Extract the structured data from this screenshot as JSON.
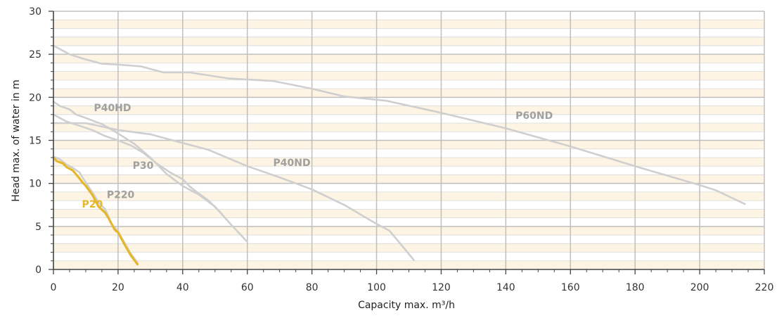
{
  "chart_data": {
    "type": "line",
    "xlabel": "Capacity max. m³/h",
    "ylabel": "Head max. of water in m",
    "xlim": [
      0,
      220
    ],
    "ylim": [
      0,
      30
    ],
    "x_ticks": [
      0,
      20,
      40,
      60,
      80,
      100,
      120,
      140,
      160,
      180,
      200,
      220
    ],
    "y_ticks": [
      0,
      5,
      10,
      15,
      20,
      25,
      30
    ],
    "grid": true,
    "legend": "none",
    "colors": {
      "band_light": "#fdf4e3",
      "band_white": "#ffffff",
      "major_grid": "#bfbfbf",
      "minor_grid": "#d9d9d9",
      "axis": "#444444",
      "series_gray": "#cfcfcf",
      "label_gray": "#a0a0a0",
      "series_yellow": "#e5b72a",
      "label_yellow": "#e5b72a"
    },
    "series": [
      {
        "name": "P60ND",
        "color": "#cfcfcf",
        "label_color": "#a0a0a0",
        "label_at": [
          143,
          17.5
        ],
        "x": [
          0,
          5,
          10,
          15,
          20,
          27,
          34,
          42,
          54,
          68,
          80,
          90,
          103,
          120,
          140,
          160,
          180,
          200,
          205,
          214
        ],
        "y": [
          26,
          25,
          24.4,
          23.9,
          23.8,
          23.6,
          22.9,
          22.9,
          22.2,
          21.9,
          21.0,
          20.1,
          19.6,
          18.2,
          16.4,
          14.3,
          12.0,
          9.8,
          9.2,
          7.6
        ]
      },
      {
        "name": "P40ND",
        "color": "#cfcfcf",
        "label_color": "#a0a0a0",
        "label_at": [
          68,
          12
        ],
        "x": [
          0,
          10,
          20,
          30,
          40,
          48,
          60,
          70,
          80,
          90,
          100,
          104,
          108,
          111.5
        ],
        "y": [
          17,
          17,
          16.2,
          15.7,
          14.7,
          13.9,
          12.0,
          10.7,
          9.3,
          7.5,
          5.3,
          4.5,
          2.7,
          1.1
        ]
      },
      {
        "name": "P40HD",
        "color": "#cfcfcf",
        "label_color": "#a0a0a0",
        "label_at": [
          12.5,
          18.4
        ],
        "x": [
          0,
          2,
          5,
          7,
          10,
          15,
          20,
          25,
          30,
          35,
          40,
          45,
          50,
          55,
          60
        ],
        "y": [
          19.5,
          19.0,
          18.6,
          18.0,
          17.6,
          16.9,
          15.8,
          14.6,
          13.0,
          11.1,
          9.7,
          8.7,
          7.3,
          5.2,
          3.2
        ]
      },
      {
        "name": "P30",
        "color": "#cfcfcf",
        "label_color": "#a0a0a0",
        "label_at": [
          24.5,
          11.7
        ],
        "x": [
          0,
          4,
          8,
          12,
          16,
          20,
          24,
          28,
          32,
          36,
          40,
          42,
          44,
          48,
          52
        ],
        "y": [
          18.0,
          17.2,
          16.7,
          16.2,
          15.5,
          15.0,
          14.4,
          13.5,
          12.3,
          11.3,
          10.5,
          9.7,
          9.1,
          8.0,
          6.5
        ]
      },
      {
        "name": "P220",
        "color": "#cfcfcf",
        "label_color": "#a0a0a0",
        "label_at": [
          16.5,
          8.3
        ],
        "x": [
          0,
          2,
          4,
          6,
          8,
          10,
          12,
          14,
          16,
          17,
          18,
          20,
          22,
          24,
          26
        ],
        "y": [
          13.1,
          12.8,
          12.2,
          11.8,
          11.3,
          10.1,
          9.0,
          7.8,
          7.0,
          6.2,
          5.3,
          4.4,
          3.1,
          1.8,
          0.8
        ]
      },
      {
        "name": "P20",
        "color": "#e5b72a",
        "label_color": "#e5b72a",
        "label_at": [
          8.8,
          7.2
        ],
        "x": [
          0,
          1,
          3,
          4,
          6,
          8,
          9,
          10,
          12,
          14,
          16,
          17,
          18,
          19,
          20,
          22,
          24,
          26
        ],
        "y": [
          13.0,
          12.6,
          12.3,
          11.9,
          11.5,
          10.6,
          10.1,
          9.7,
          8.7,
          7.3,
          6.6,
          6.0,
          5.3,
          4.6,
          4.3,
          2.9,
          1.6,
          0.6
        ]
      }
    ]
  }
}
